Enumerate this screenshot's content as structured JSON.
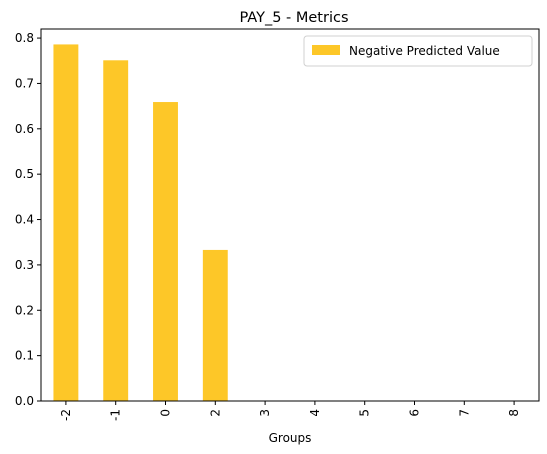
{
  "chart_data": {
    "type": "bar",
    "title": "PAY_5 - Metrics",
    "xlabel": "Groups",
    "ylabel": "",
    "categories": [
      "-2",
      "-1",
      "0",
      "2",
      "3",
      "4",
      "5",
      "6",
      "7",
      "8"
    ],
    "series": [
      {
        "name": "Negative Predicted Value",
        "values": [
          0.786,
          0.751,
          0.659,
          0.333,
          0,
          0,
          0,
          0,
          0,
          0
        ],
        "color": "#fdc728"
      }
    ],
    "ylim": [
      0,
      0.82
    ],
    "yticks": [
      "0.0",
      "0.1",
      "0.2",
      "0.3",
      "0.4",
      "0.5",
      "0.6",
      "0.7",
      "0.8"
    ],
    "grid": false,
    "legend_position": "top-right"
  }
}
